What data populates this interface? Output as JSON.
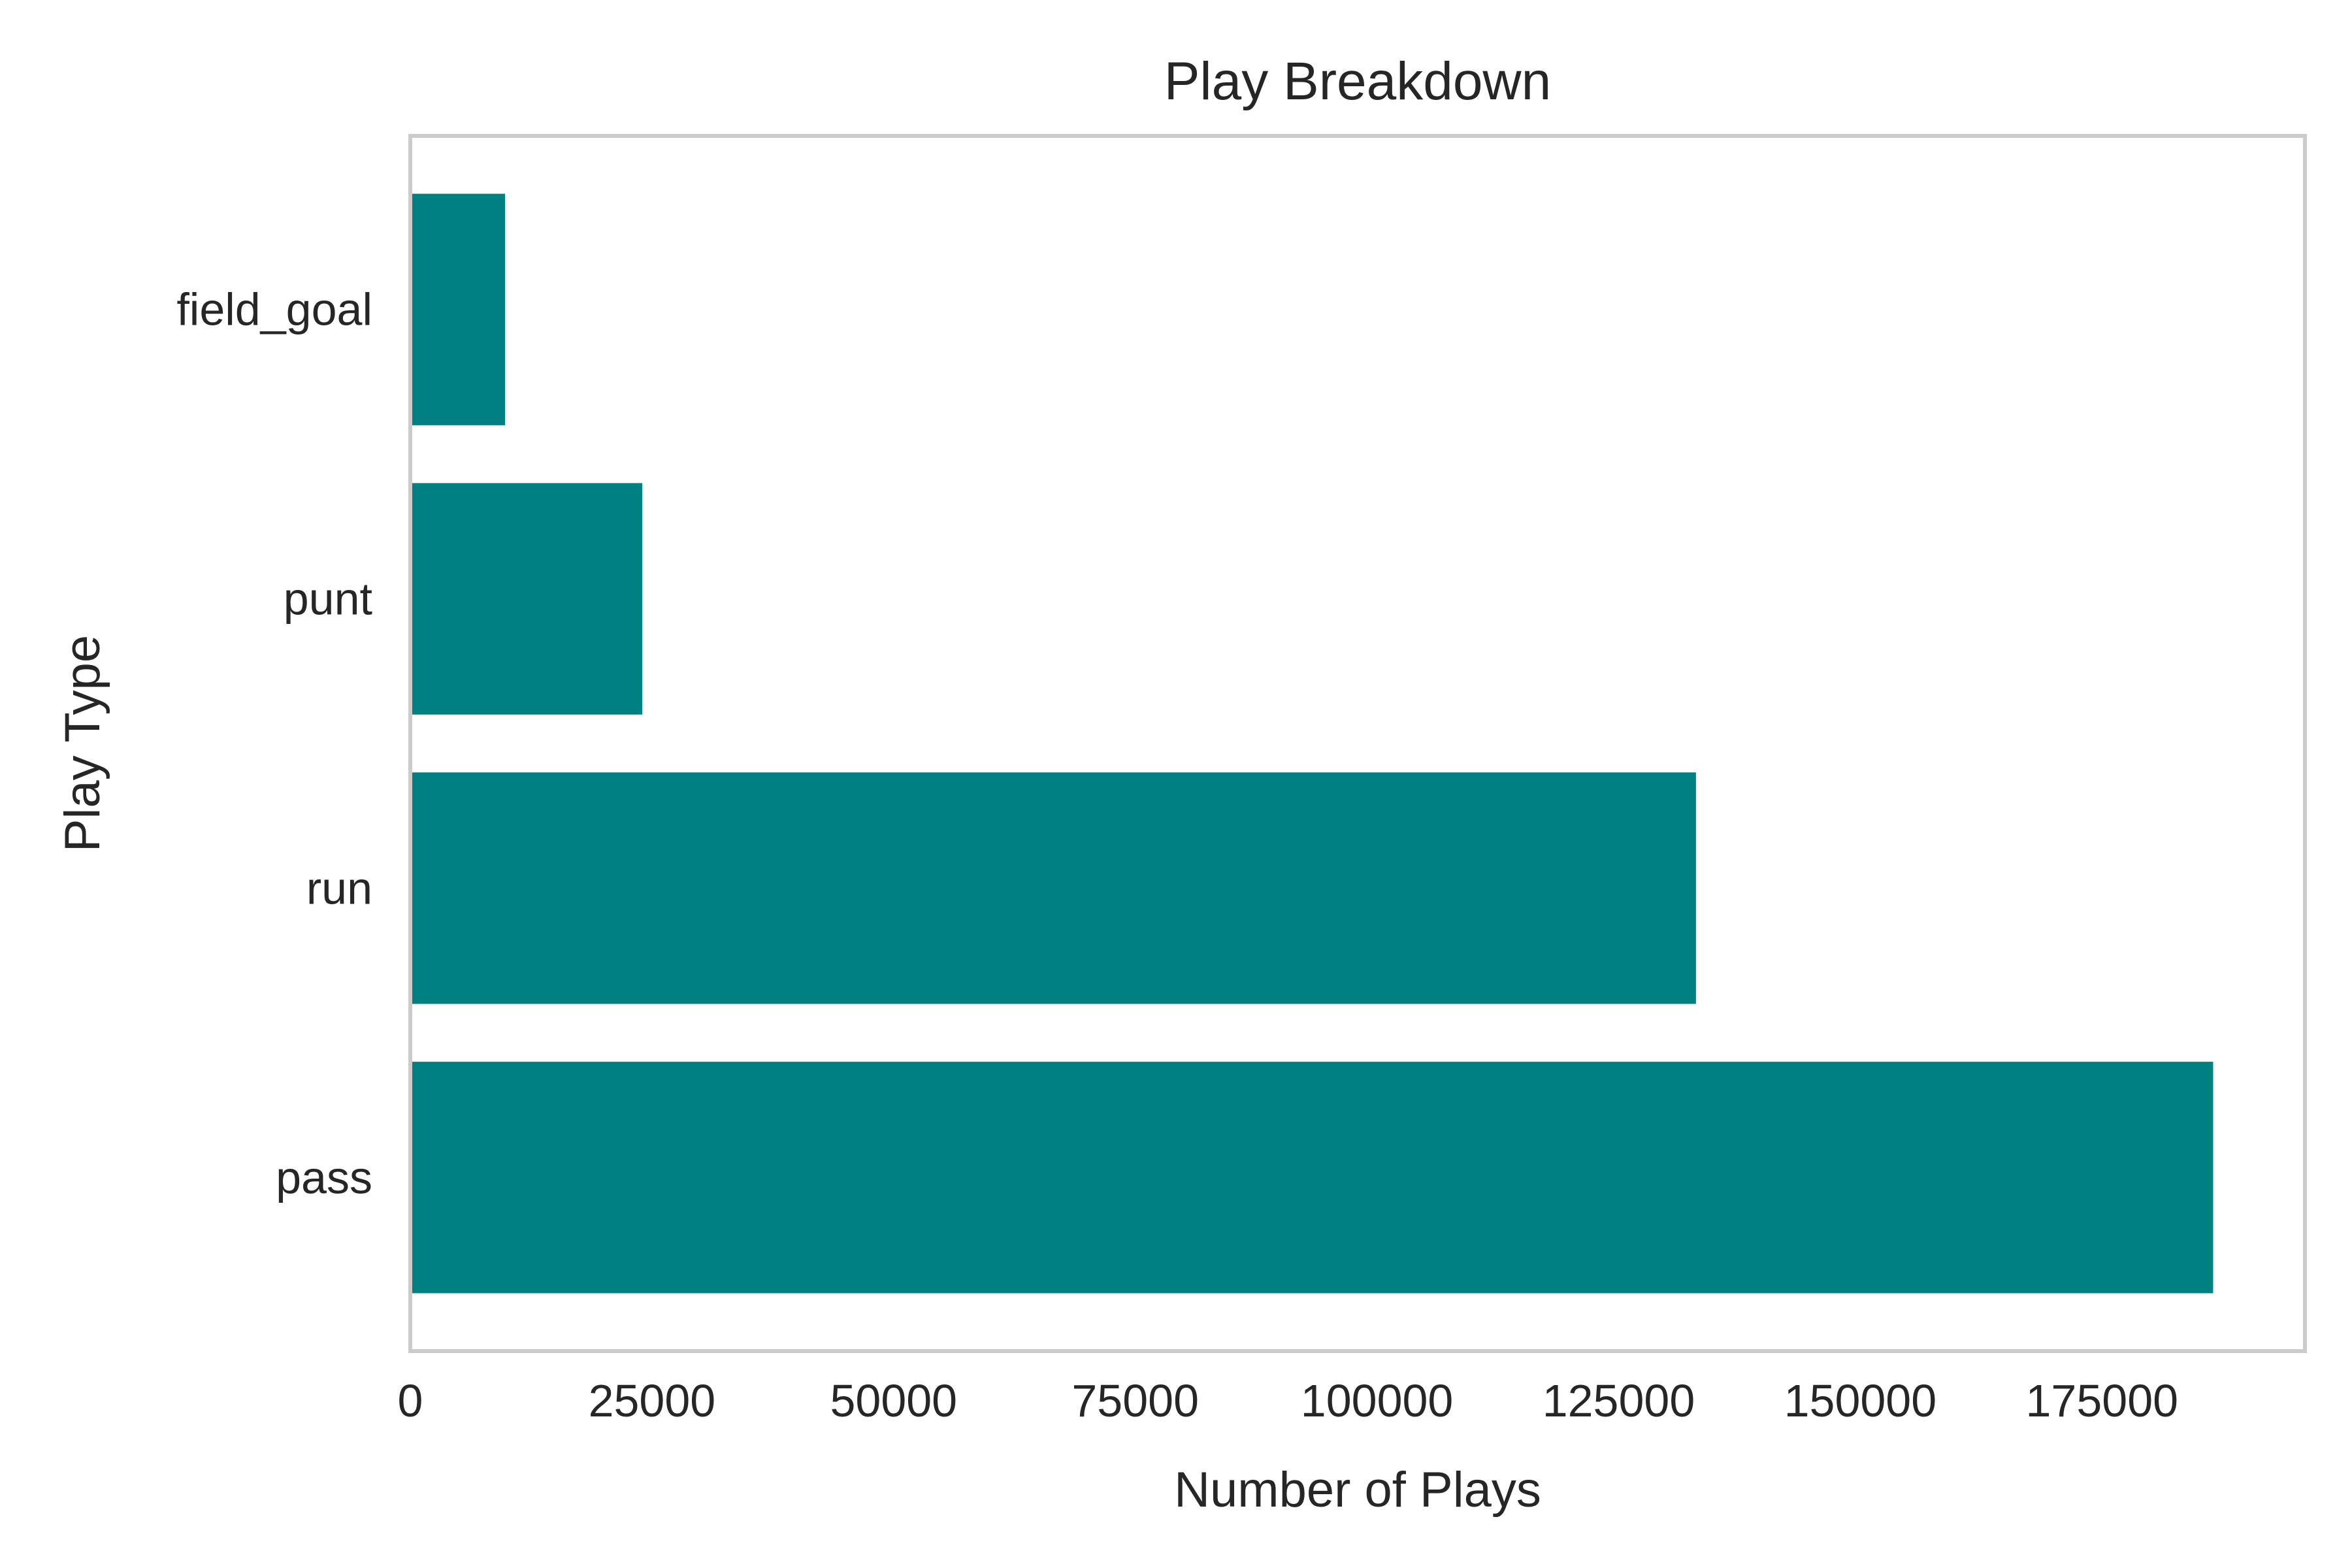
{
  "chart_data": {
    "type": "bar",
    "orientation": "horizontal",
    "title": "Play Breakdown",
    "xlabel": "Number of Plays",
    "ylabel": "Play Type",
    "categories": [
      "pass",
      "run",
      "punt",
      "field_goal"
    ],
    "values": [
      186500,
      133000,
      24000,
      9800
    ],
    "xlim": [
      0,
      196000
    ],
    "xticks": [
      0,
      25000,
      50000,
      75000,
      100000,
      125000,
      150000,
      175000
    ],
    "xtick_labels": [
      "0",
      "25000",
      "50000",
      "75000",
      "100000",
      "125000",
      "150000",
      "175000"
    ],
    "bar_color": "#008080",
    "frame_color": "#cccccc",
    "grid": false,
    "legend": "none"
  }
}
